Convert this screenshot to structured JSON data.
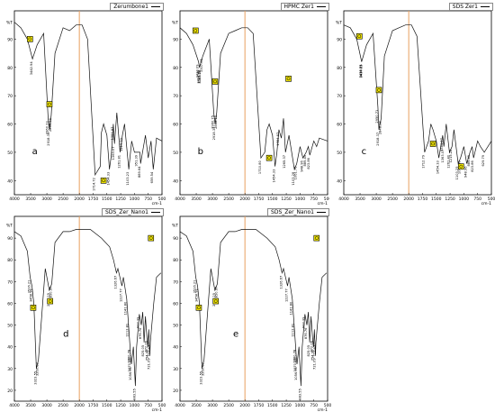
{
  "chart_data": [
    {
      "type": "line",
      "panel_letter": "a",
      "legend": "Zerumbone1",
      "xaxis": {
        "ticks": [
          "4000",
          "3500",
          "3000",
          "2500",
          "2000",
          "1750",
          "1500",
          "1250",
          "1000",
          "750",
          "500"
        ],
        "unit": "cm-1"
      },
      "yaxis": {
        "ticks": [
          "%T",
          "90",
          "80",
          "70",
          "60",
          "50",
          "40"
        ]
      },
      "peak_labels": [
        "3442.94",
        "2960.23",
        "2918.35",
        "2866.96",
        "1714.72",
        "1454.33",
        "1384.87",
        "1363.07",
        "1261.81",
        "1219.33",
        "1103.23",
        "951.39",
        "889.64",
        "659.54"
      ],
      "spectrum": [
        [
          4000,
          96
        ],
        [
          3800,
          94
        ],
        [
          3600,
          90
        ],
        [
          3442,
          83
        ],
        [
          3300,
          88
        ],
        [
          3100,
          92
        ],
        [
          2960,
          62
        ],
        [
          2918,
          58
        ],
        [
          2867,
          63
        ],
        [
          2750,
          85
        ],
        [
          2500,
          94
        ],
        [
          2300,
          93
        ],
        [
          2100,
          95
        ],
        [
          1950,
          95
        ],
        [
          1850,
          90
        ],
        [
          1714,
          42
        ],
        [
          1620,
          45
        ],
        [
          1600,
          57
        ],
        [
          1560,
          60
        ],
        [
          1500,
          56
        ],
        [
          1454,
          44
        ],
        [
          1420,
          49
        ],
        [
          1384,
          60
        ],
        [
          1363,
          53
        ],
        [
          1320,
          64
        ],
        [
          1261,
          50
        ],
        [
          1219,
          56
        ],
        [
          1180,
          60
        ],
        [
          1103,
          44
        ],
        [
          1050,
          54
        ],
        [
          1000,
          50
        ],
        [
          951,
          50
        ],
        [
          900,
          50
        ],
        [
          889,
          46
        ],
        [
          800,
          56
        ],
        [
          750,
          48
        ],
        [
          700,
          54
        ],
        [
          659,
          44
        ],
        [
          600,
          55
        ],
        [
          500,
          54
        ]
      ]
    },
    {
      "type": "line",
      "panel_letter": "b",
      "legend": "HPMC Zer1",
      "xaxis": {
        "ticks": [
          "4000",
          "3500",
          "3000",
          "2500",
          "2000",
          "1750",
          "1500",
          "1250",
          "1000",
          "750",
          "500"
        ],
        "unit": "cm-1"
      },
      "yaxis": {
        "ticks": [
          "%T",
          "90",
          "80",
          "70",
          "60",
          "50",
          "40"
        ]
      },
      "peak_labels": [
        "3430.09",
        "3402.40",
        "3363.86",
        "3365.70",
        "3307.05",
        "2960.75",
        "2918.37",
        "2868.10",
        "1710.80",
        "1454.33",
        "1384.87",
        "1265.37",
        "1103.28",
        "1061.76",
        "948.96",
        "889.49",
        "823.86"
      ],
      "spectrum": [
        [
          4000,
          94
        ],
        [
          3800,
          92
        ],
        [
          3600,
          88
        ],
        [
          3430,
          82
        ],
        [
          3400,
          80
        ],
        [
          3300,
          84
        ],
        [
          3100,
          90
        ],
        [
          2960,
          64
        ],
        [
          2918,
          60
        ],
        [
          2868,
          64
        ],
        [
          2750,
          85
        ],
        [
          2500,
          92
        ],
        [
          2300,
          93
        ],
        [
          2100,
          94
        ],
        [
          1950,
          94
        ],
        [
          1850,
          92
        ],
        [
          1710,
          48
        ],
        [
          1640,
          50
        ],
        [
          1600,
          58
        ],
        [
          1560,
          60
        ],
        [
          1500,
          56
        ],
        [
          1454,
          45
        ],
        [
          1420,
          50
        ],
        [
          1384,
          58
        ],
        [
          1340,
          55
        ],
        [
          1300,
          62
        ],
        [
          1265,
          50
        ],
        [
          1200,
          56
        ],
        [
          1103,
          44
        ],
        [
          1061,
          46
        ],
        [
          1000,
          52
        ],
        [
          948,
          48
        ],
        [
          889,
          50
        ],
        [
          850,
          52
        ],
        [
          823,
          49
        ],
        [
          750,
          54
        ],
        [
          700,
          52
        ],
        [
          650,
          55
        ],
        [
          500,
          54
        ]
      ]
    },
    {
      "type": "line",
      "panel_letter": "c",
      "legend": "SDS Zer1",
      "xaxis": {
        "ticks": [
          "4000",
          "3500",
          "3000",
          "2500",
          "2000",
          "1750",
          "1500",
          "1250",
          "1000",
          "750",
          "500"
        ],
        "unit": "cm-1"
      },
      "yaxis": {
        "ticks": [
          "%T",
          "90",
          "80",
          "70",
          "60",
          "50",
          "40"
        ]
      },
      "peak_labels": [
        "3450.83",
        "3438.71",
        "3437.15",
        "2950.71",
        "2918.37",
        "2848.98",
        "1712.79",
        "1454.33",
        "1384.87",
        "1363.07",
        "1261.40",
        "1215.22",
        "1103.25",
        "1061.90",
        "948.96",
        "889.49",
        "823.86",
        "629.79"
      ],
      "spectrum": [
        [
          4000,
          95
        ],
        [
          3800,
          94
        ],
        [
          3600,
          90
        ],
        [
          3450,
          82
        ],
        [
          3300,
          88
        ],
        [
          3100,
          92
        ],
        [
          2950,
          66
        ],
        [
          2918,
          58
        ],
        [
          2849,
          62
        ],
        [
          2750,
          84
        ],
        [
          2500,
          93
        ],
        [
          2300,
          94
        ],
        [
          2100,
          95
        ],
        [
          1950,
          95
        ],
        [
          1850,
          91
        ],
        [
          1712,
          50
        ],
        [
          1640,
          54
        ],
        [
          1600,
          60
        ],
        [
          1560,
          58
        ],
        [
          1500,
          54
        ],
        [
          1454,
          48
        ],
        [
          1420,
          52
        ],
        [
          1384,
          56
        ],
        [
          1363,
          52
        ],
        [
          1320,
          60
        ],
        [
          1261,
          50
        ],
        [
          1215,
          52
        ],
        [
          1180,
          58
        ],
        [
          1103,
          46
        ],
        [
          1061,
          48
        ],
        [
          1000,
          52
        ],
        [
          948,
          46
        ],
        [
          889,
          50
        ],
        [
          850,
          52
        ],
        [
          823,
          48
        ],
        [
          750,
          54
        ],
        [
          700,
          52
        ],
        [
          629,
          50
        ],
        [
          500,
          54
        ]
      ]
    },
    {
      "type": "line",
      "panel_letter": "d",
      "legend": "SDS_Zer_Nano1",
      "xaxis": {
        "ticks": [
          "4000",
          "3500",
          "3000",
          "2500",
          "2000",
          "1750",
          "1500",
          "1250",
          "1000",
          "750",
          "500"
        ],
        "unit": "cm-1"
      },
      "yaxis": {
        "ticks": [
          "%T",
          "90",
          "80",
          "70",
          "60",
          "50",
          "40",
          "30",
          "20"
        ]
      },
      "peak_labels": [
        "3516.21",
        "3458.91",
        "3323.55",
        "3260.02",
        "2924.25",
        "2850.97",
        "1326.67",
        "1227.77",
        "1141.80",
        "1112.81",
        "1080.78",
        "1070.15",
        "1056.90",
        "983.55",
        "912.39",
        "876.76",
        "825.05",
        "772.06",
        "754.96",
        "721.09",
        "713.67"
      ],
      "spectrum": [
        [
          4000,
          93
        ],
        [
          3800,
          91
        ],
        [
          3600,
          84
        ],
        [
          3516,
          72
        ],
        [
          3459,
          68
        ],
        [
          3400,
          60
        ],
        [
          3323,
          30
        ],
        [
          3260,
          34
        ],
        [
          3150,
          56
        ],
        [
          3050,
          76
        ],
        [
          2924,
          66
        ],
        [
          2850,
          69
        ],
        [
          2750,
          88
        ],
        [
          2500,
          93
        ],
        [
          2300,
          93
        ],
        [
          2100,
          94
        ],
        [
          2000,
          94
        ],
        [
          1800,
          94
        ],
        [
          1600,
          90
        ],
        [
          1450,
          86
        ],
        [
          1380,
          80
        ],
        [
          1326,
          74
        ],
        [
          1300,
          76
        ],
        [
          1227,
          68
        ],
        [
          1200,
          72
        ],
        [
          1141,
          62
        ],
        [
          1112,
          52
        ],
        [
          1080,
          40
        ],
        [
          1070,
          36
        ],
        [
          1056,
          32
        ],
        [
          1020,
          40
        ],
        [
          983,
          22
        ],
        [
          960,
          40
        ],
        [
          912,
          55
        ],
        [
          876,
          50
        ],
        [
          850,
          56
        ],
        [
          825,
          42
        ],
        [
          800,
          54
        ],
        [
          772,
          44
        ],
        [
          754,
          40
        ],
        [
          740,
          48
        ],
        [
          721,
          36
        ],
        [
          713,
          42
        ],
        [
          650,
          60
        ],
        [
          600,
          72
        ],
        [
          520,
          74
        ]
      ]
    },
    {
      "type": "line",
      "panel_letter": "e",
      "legend": "SDS_Zer_Nano1",
      "xaxis": {
        "ticks": [
          "4000",
          "3500",
          "3000",
          "2500",
          "2000",
          "1750",
          "1500",
          "1250",
          "1000",
          "750",
          "500"
        ],
        "unit": "cm-1"
      },
      "yaxis": {
        "ticks": [
          "%T",
          "90",
          "80",
          "70",
          "60",
          "50",
          "40",
          "30",
          "20"
        ]
      },
      "peak_labels": [
        "3516.21",
        "3458.91",
        "3323.55",
        "3260.02",
        "2924.25",
        "2850.97",
        "1326.67",
        "1227.77",
        "1141.80",
        "1112.81",
        "1080.78",
        "1070.15",
        "1056.90",
        "983.55",
        "912.39",
        "876.76",
        "825.05",
        "772.06",
        "754.96",
        "721.09",
        "713.67"
      ],
      "spectrum": [
        [
          4000,
          93
        ],
        [
          3800,
          91
        ],
        [
          3600,
          84
        ],
        [
          3516,
          72
        ],
        [
          3459,
          68
        ],
        [
          3400,
          60
        ],
        [
          3323,
          30
        ],
        [
          3260,
          34
        ],
        [
          3150,
          56
        ],
        [
          3050,
          76
        ],
        [
          2924,
          66
        ],
        [
          2850,
          69
        ],
        [
          2750,
          88
        ],
        [
          2500,
          93
        ],
        [
          2300,
          93
        ],
        [
          2100,
          94
        ],
        [
          2000,
          94
        ],
        [
          1800,
          94
        ],
        [
          1600,
          90
        ],
        [
          1450,
          86
        ],
        [
          1380,
          80
        ],
        [
          1326,
          74
        ],
        [
          1300,
          76
        ],
        [
          1227,
          68
        ],
        [
          1200,
          72
        ],
        [
          1141,
          62
        ],
        [
          1112,
          52
        ],
        [
          1080,
          40
        ],
        [
          1070,
          36
        ],
        [
          1056,
          32
        ],
        [
          1020,
          40
        ],
        [
          983,
          22
        ],
        [
          960,
          40
        ],
        [
          912,
          55
        ],
        [
          876,
          50
        ],
        [
          850,
          56
        ],
        [
          825,
          42
        ],
        [
          800,
          54
        ],
        [
          772,
          44
        ],
        [
          754,
          40
        ],
        [
          740,
          48
        ],
        [
          721,
          36
        ],
        [
          713,
          42
        ],
        [
          650,
          60
        ],
        [
          600,
          72
        ],
        [
          520,
          74
        ]
      ]
    }
  ]
}
